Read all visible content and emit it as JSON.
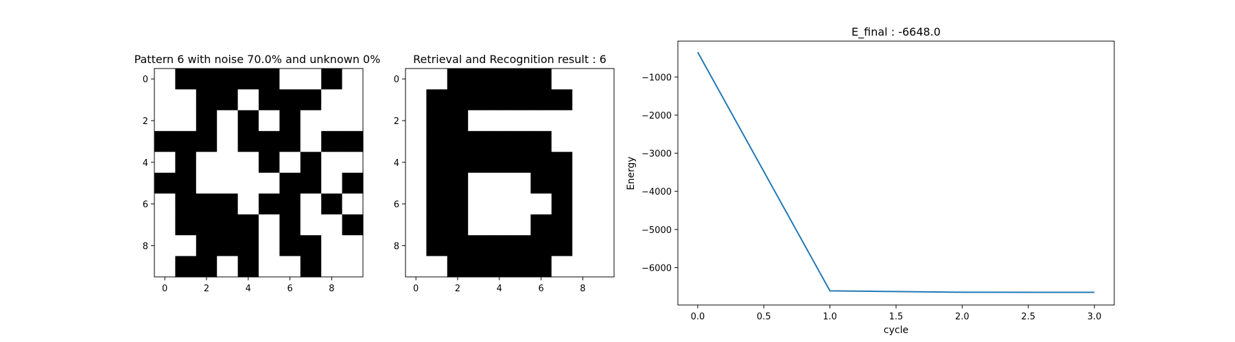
{
  "chart_data": [
    {
      "type": "heatmap",
      "title": "Pattern 6 with noise 70.0% and unknown 0%",
      "colormap": {
        "1": "#000000",
        "0": "#ffffff"
      },
      "x_ticks": [
        "0",
        "2",
        "4",
        "6",
        "8"
      ],
      "y_ticks": [
        "0",
        "2",
        "4",
        "6",
        "8"
      ],
      "grid": [
        [
          0,
          1,
          1,
          1,
          1,
          1,
          0,
          0,
          1,
          0
        ],
        [
          0,
          0,
          1,
          1,
          0,
          1,
          1,
          1,
          0,
          0
        ],
        [
          0,
          0,
          1,
          0,
          1,
          0,
          1,
          0,
          0,
          0
        ],
        [
          1,
          1,
          1,
          0,
          1,
          1,
          1,
          0,
          1,
          1
        ],
        [
          0,
          1,
          0,
          0,
          0,
          1,
          0,
          1,
          0,
          0
        ],
        [
          1,
          1,
          0,
          0,
          0,
          0,
          1,
          1,
          0,
          1
        ],
        [
          0,
          1,
          1,
          1,
          0,
          1,
          1,
          0,
          1,
          0
        ],
        [
          0,
          1,
          1,
          1,
          1,
          0,
          1,
          0,
          0,
          1
        ],
        [
          0,
          0,
          1,
          1,
          1,
          0,
          1,
          1,
          0,
          0
        ],
        [
          0,
          1,
          1,
          0,
          1,
          0,
          0,
          1,
          0,
          0
        ]
      ]
    },
    {
      "type": "heatmap",
      "title": "Retrieval and Recognition result : 6",
      "colormap": {
        "1": "#000000",
        "0": "#ffffff"
      },
      "x_ticks": [
        "0",
        "2",
        "4",
        "6",
        "8"
      ],
      "y_ticks": [
        "0",
        "2",
        "4",
        "6",
        "8"
      ],
      "grid": [
        [
          0,
          0,
          1,
          1,
          1,
          1,
          1,
          0,
          0,
          0
        ],
        [
          0,
          1,
          1,
          1,
          1,
          1,
          1,
          1,
          0,
          0
        ],
        [
          0,
          1,
          1,
          0,
          0,
          0,
          0,
          0,
          0,
          0
        ],
        [
          0,
          1,
          1,
          1,
          1,
          1,
          1,
          0,
          0,
          0
        ],
        [
          0,
          1,
          1,
          1,
          1,
          1,
          1,
          1,
          0,
          0
        ],
        [
          0,
          1,
          1,
          0,
          0,
          0,
          1,
          1,
          0,
          0
        ],
        [
          0,
          1,
          1,
          0,
          0,
          0,
          0,
          1,
          0,
          0
        ],
        [
          0,
          1,
          1,
          0,
          0,
          0,
          1,
          1,
          0,
          0
        ],
        [
          0,
          1,
          1,
          1,
          1,
          1,
          1,
          1,
          0,
          0
        ],
        [
          0,
          0,
          1,
          1,
          1,
          1,
          1,
          0,
          0,
          0
        ]
      ]
    },
    {
      "type": "line",
      "title": "E_final : -6648.0",
      "xlabel": "cycle",
      "ylabel": "Energy",
      "x": [
        0,
        1,
        2,
        3
      ],
      "series": [
        {
          "values": [
            -350,
            -6610,
            -6645,
            -6648
          ],
          "color": "#1f77b4"
        }
      ],
      "xlim": [
        -0.15,
        3.15
      ],
      "ylim": [
        -6980,
        -60
      ],
      "x_ticks": [
        0.0,
        0.5,
        1.0,
        1.5,
        2.0,
        2.5,
        3.0
      ],
      "x_tick_labels": [
        "0.0",
        "0.5",
        "1.0",
        "1.5",
        "2.0",
        "2.5",
        "3.0"
      ],
      "y_ticks": [
        -1000,
        -2000,
        -3000,
        -4000,
        -5000,
        -6000
      ],
      "y_tick_labels": [
        "−1000",
        "−2000",
        "−3000",
        "−4000",
        "−5000",
        "−6000"
      ],
      "grid": false
    }
  ]
}
